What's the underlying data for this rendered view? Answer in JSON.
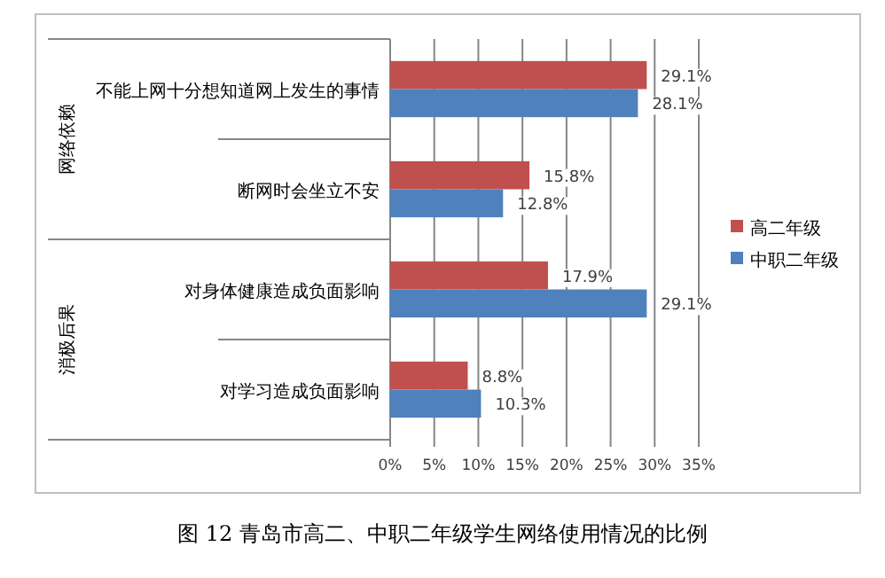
{
  "chart_data": {
    "type": "bar",
    "orientation": "horizontal",
    "title": "图 12 青岛市高二、中职二年级学生网络使用情况的比例",
    "categories": [
      "不能上网十分想知道网上发生的事情",
      "断网时会坐立不安",
      "对身体健康造成负面影响",
      "对学习造成负面影响"
    ],
    "series": [
      {
        "name": "高二年级",
        "color": "#c0504d",
        "values": [
          29.1,
          15.8,
          17.9,
          8.8
        ],
        "value_labels": [
          "29.1%",
          "15.8%",
          "17.9%",
          "8.8%"
        ]
      },
      {
        "name": "中职二年级",
        "color": "#4f81bd",
        "values": [
          28.1,
          12.8,
          29.1,
          10.3
        ],
        "value_labels": [
          "28.1%",
          "12.8%",
          "29.1%",
          "10.3%"
        ]
      }
    ],
    "annotations": [
      "网络依赖",
      "消极后果"
    ],
    "xlim": [
      0,
      35
    ],
    "xticks": [
      {
        "value": 0,
        "label": "0%"
      },
      {
        "value": 5,
        "label": "5%"
      },
      {
        "value": 10,
        "label": "10%"
      },
      {
        "value": 15,
        "label": "15%"
      },
      {
        "value": 20,
        "label": "20%"
      },
      {
        "value": 25,
        "label": "25%"
      },
      {
        "value": 30,
        "label": "30%"
      },
      {
        "value": 35,
        "label": "35%"
      }
    ],
    "grid": "x",
    "legend": "right"
  }
}
